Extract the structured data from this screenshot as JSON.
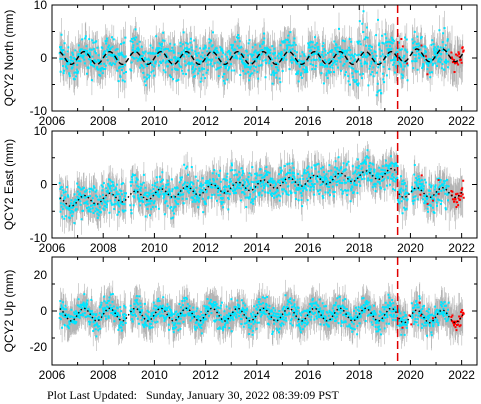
{
  "footer": {
    "label": "Plot Last Updated:",
    "value": "Sunday, January 30, 2022 08:39:09 PST"
  },
  "colors": {
    "data_points": "#00e5ff",
    "error_bars": "#b4b4b4",
    "recent_points": "#ff0000",
    "model_line": "#000000",
    "event_line": "#e00000"
  },
  "chart_data": [
    {
      "type": "scatter",
      "ylabel": "QCY2 North (mm)",
      "xlim": [
        2006,
        2022.6
      ],
      "ylim": [
        -10,
        10
      ],
      "xticks": [
        2006,
        2008,
        2010,
        2012,
        2014,
        2016,
        2018,
        2020,
        2022
      ],
      "yticks": [
        -10,
        0,
        10
      ],
      "event_line_x": 2019.5,
      "model": {
        "style": "dashed",
        "offset": 0.0,
        "trend_per_year": 0.0,
        "annual_amplitude": 1.2,
        "level_after_event": 0.5
      },
      "scatter_spread": 2.5,
      "errorbar_halfwidth": 2.5,
      "grid": false,
      "legend": "none"
    },
    {
      "type": "scatter",
      "ylabel": "QCY2 East (mm)",
      "xlim": [
        2006,
        2022.6
      ],
      "ylim": [
        -10,
        10
      ],
      "xticks": [
        2006,
        2008,
        2010,
        2012,
        2014,
        2016,
        2018,
        2020,
        2022
      ],
      "yticks": [
        -10,
        0,
        10
      ],
      "event_line_x": 2019.5,
      "model": {
        "style": "dotted",
        "offset": -3.5,
        "trend_per_year": 0.42,
        "annual_amplitude": 0.9,
        "level_after_event": -1.5
      },
      "scatter_spread": 2.2,
      "errorbar_halfwidth": 2.3,
      "grid": false,
      "legend": "none"
    },
    {
      "type": "scatter",
      "ylabel": "QCY2 Up (mm)",
      "xlim": [
        2006,
        2022.6
      ],
      "ylim": [
        -30,
        30
      ],
      "xticks": [
        2006,
        2008,
        2010,
        2012,
        2014,
        2016,
        2018,
        2020,
        2022
      ],
      "xtick_labels": [
        "2006",
        "2008",
        "2010",
        "2012",
        "2014",
        "2016",
        "2018",
        "2020",
        "2022"
      ],
      "yticks": [
        -20,
        0,
        20
      ],
      "event_line_x": 2019.5,
      "model": {
        "style": "dotted",
        "offset": -2.0,
        "trend_per_year": 0.0,
        "annual_amplitude": 3.5,
        "level_after_event": -3.0
      },
      "scatter_spread": 5.0,
      "errorbar_halfwidth": 7.0,
      "grid": false,
      "legend": "none"
    }
  ]
}
